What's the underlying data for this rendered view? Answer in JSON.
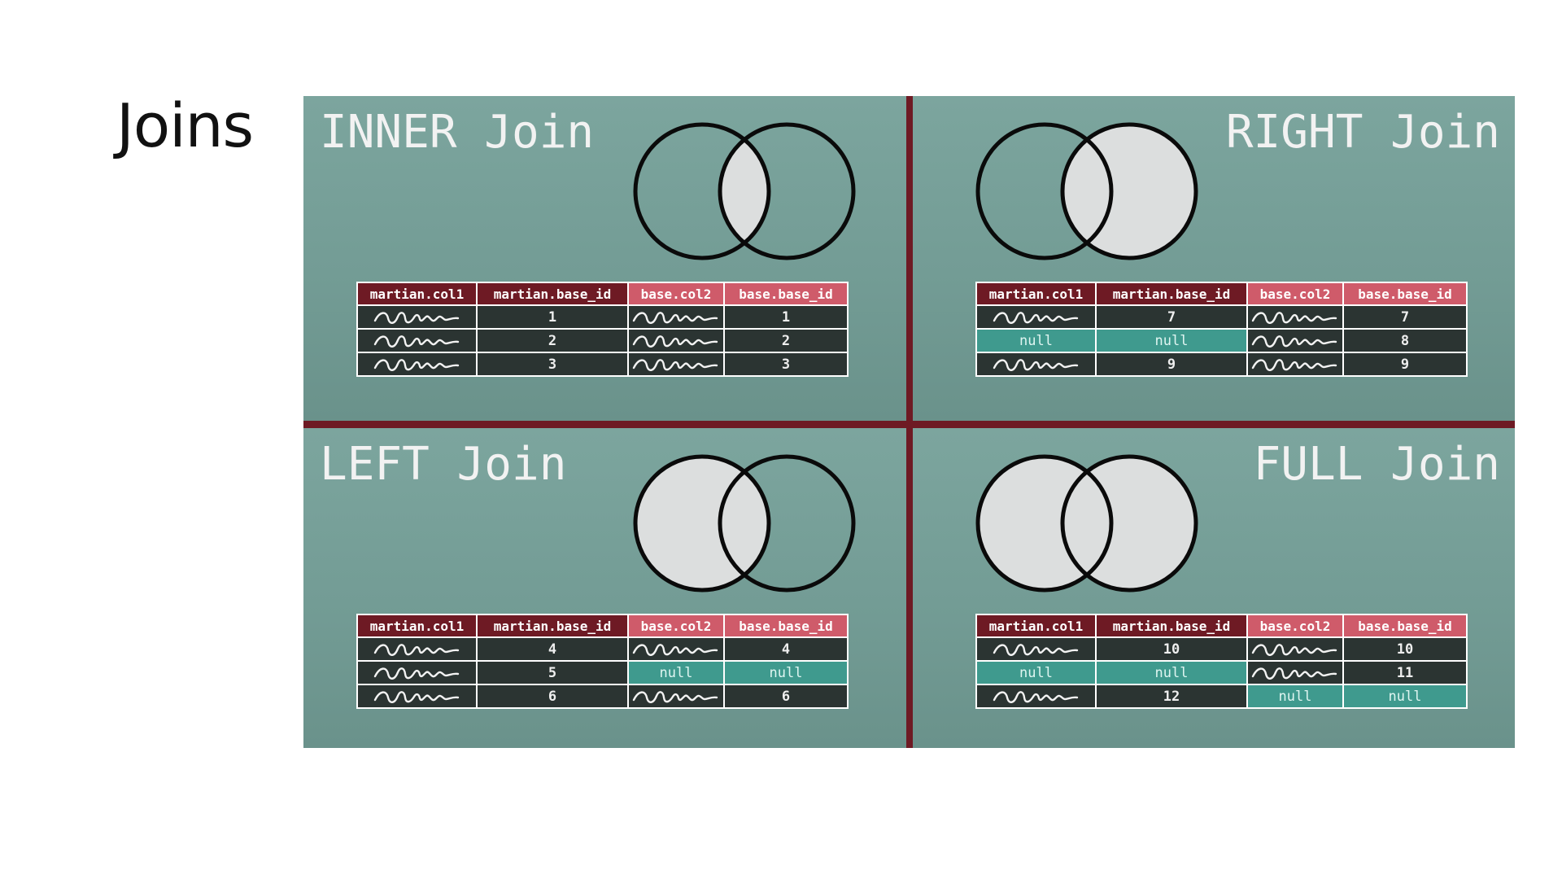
{
  "slide": {
    "title": "Joins"
  },
  "panels": [
    {
      "id": "inner",
      "title": "INNER Join",
      "venn_shaded": "intersection",
      "headers": [
        "martian.col1",
        "martian.base_id",
        "base.col2",
        "base.base_id"
      ],
      "rows": [
        [
          "~",
          "1",
          "~",
          "1"
        ],
        [
          "~",
          "2",
          "~",
          "2"
        ],
        [
          "~",
          "3",
          "~",
          "3"
        ]
      ]
    },
    {
      "id": "right",
      "title": "RIGHT Join",
      "venn_shaded": "right",
      "headers": [
        "martian.col1",
        "martian.base_id",
        "base.col2",
        "base.base_id"
      ],
      "rows": [
        [
          "~",
          "7",
          "~",
          "7"
        ],
        [
          "null",
          "null",
          "~",
          "8"
        ],
        [
          "~",
          "9",
          "~",
          "9"
        ]
      ]
    },
    {
      "id": "left",
      "title": "LEFT Join",
      "venn_shaded": "left",
      "headers": [
        "martian.col1",
        "martian.base_id",
        "base.col2",
        "base.base_id"
      ],
      "rows": [
        [
          "~",
          "4",
          "~",
          "4"
        ],
        [
          "~",
          "5",
          "null",
          "null"
        ],
        [
          "~",
          "6",
          "~",
          "6"
        ]
      ]
    },
    {
      "id": "full",
      "title": "FULL Join",
      "venn_shaded": "both",
      "headers": [
        "martian.col1",
        "martian.base_id",
        "base.col2",
        "base.base_id"
      ],
      "rows": [
        [
          "~",
          "10",
          "~",
          "10"
        ],
        [
          "null",
          "null",
          "~",
          "11"
        ],
        [
          "~",
          "12",
          "null",
          "null"
        ]
      ]
    }
  ],
  "colors": {
    "panel_bg": "#7ca59e",
    "divider": "#6e1a24",
    "header_martian": "#6e1a24",
    "header_base": "#cf5b6a",
    "cell_dark": "#2b3432",
    "cell_null": "#3f9a8e",
    "venn_fill": "#dcdede"
  },
  "icons": {
    "squiggle": "handwriting-squiggle-icon"
  }
}
